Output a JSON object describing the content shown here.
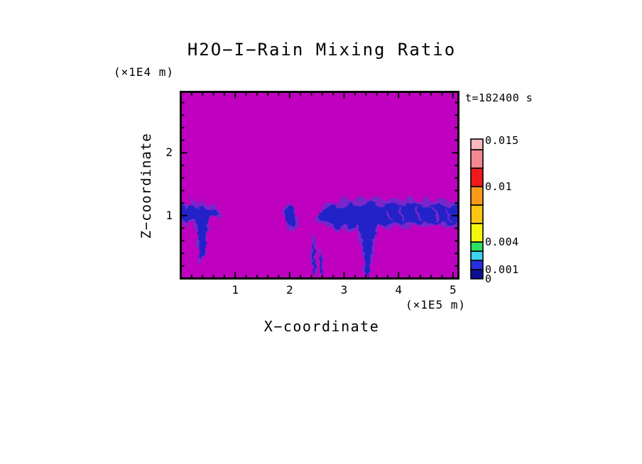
{
  "title": "H2O−I−Rain Mixing Ratio",
  "time_label": "t=182400 s",
  "axes": {
    "x_title": "X−coordinate",
    "x_unit": "(×1E5 m)",
    "y_title": "Z−coordinate",
    "y_unit": "(×1E4 m)"
  },
  "colors": {
    "background": "#ffffff",
    "field_magenta": "#bf00bf",
    "contour_violet": "#7a26cd",
    "contour_blue": "#2424c8",
    "frame_black": "#000000"
  },
  "chart_data": {
    "type": "heatmap",
    "title": "H2O−I−Rain Mixing Ratio",
    "xlabel": "X−coordinate (×1E5 m)",
    "ylabel": "Z−coordinate (×1E4 m)",
    "time_annotation": "t=182400 s",
    "xlim": [
      0,
      5.1
    ],
    "ylim": [
      0,
      2.97
    ],
    "x_major_ticks": [
      1,
      2,
      3,
      4,
      5
    ],
    "y_major_ticks": [
      1,
      2
    ],
    "minor_tick_step": 0.2,
    "grid": false,
    "field_background_color": "#bf00bf",
    "colorbar": {
      "vmax": 0.01515,
      "levels": [
        0,
        0.001,
        0.002,
        0.003,
        0.004,
        0.006,
        0.008,
        0.01,
        0.012,
        0.014,
        0.01515
      ],
      "colors_bottom_to_top": [
        "#0d0d96",
        "#2430e0",
        "#3ed2f0",
        "#2ae062",
        "#f6f60c",
        "#fbc613",
        "#fa9a1b",
        "#f01a1a",
        "#f4888e",
        "#f7b9c0"
      ],
      "tick_labels": [
        {
          "value": 0.015,
          "label": "0.015"
        },
        {
          "value": 0.01,
          "label": "0.01"
        },
        {
          "value": 0.004,
          "label": "0.004"
        },
        {
          "value": 0.001,
          "label": "0.001"
        },
        {
          "value": 0,
          "label": "0"
        }
      ]
    },
    "features": [
      {
        "name": "left-band-fringe",
        "layer": "violet",
        "points": [
          [
            0,
            1.25
          ],
          [
            0.12,
            1.18
          ],
          [
            0.2,
            1.28
          ],
          [
            0.3,
            1.18
          ],
          [
            0.4,
            1.24
          ],
          [
            0.5,
            1.15
          ],
          [
            0.62,
            1.18
          ],
          [
            0.72,
            1.08
          ],
          [
            0.78,
            1.0
          ],
          [
            0.68,
            0.95
          ],
          [
            0.58,
            1.0
          ],
          [
            0.52,
            0.92
          ],
          [
            0.5,
            0.75
          ],
          [
            0.45,
            0.6
          ],
          [
            0.47,
            0.45
          ],
          [
            0.4,
            0.3
          ],
          [
            0.36,
            0.22
          ],
          [
            0.32,
            0.35
          ],
          [
            0.33,
            0.5
          ],
          [
            0.28,
            0.6
          ],
          [
            0.3,
            0.8
          ],
          [
            0.22,
            0.9
          ],
          [
            0.12,
            0.85
          ],
          [
            0,
            0.88
          ]
        ]
      },
      {
        "name": "left-band-core",
        "layer": "blue",
        "points": [
          [
            0,
            1.18
          ],
          [
            0.1,
            1.1
          ],
          [
            0.2,
            1.18
          ],
          [
            0.32,
            1.1
          ],
          [
            0.42,
            1.16
          ],
          [
            0.55,
            1.08
          ],
          [
            0.65,
            1.1
          ],
          [
            0.7,
            1.02
          ],
          [
            0.62,
            0.98
          ],
          [
            0.52,
            1.0
          ],
          [
            0.5,
            0.85
          ],
          [
            0.46,
            0.65
          ],
          [
            0.47,
            0.5
          ],
          [
            0.41,
            0.38
          ],
          [
            0.37,
            0.3
          ],
          [
            0.34,
            0.45
          ],
          [
            0.34,
            0.6
          ],
          [
            0.3,
            0.7
          ],
          [
            0.3,
            0.85
          ],
          [
            0.2,
            0.95
          ],
          [
            0.1,
            0.9
          ],
          [
            0,
            0.95
          ]
        ]
      },
      {
        "name": "mid-blob-fringe",
        "layer": "violet",
        "points": [
          [
            1.88,
            1.02
          ],
          [
            1.92,
            1.15
          ],
          [
            1.98,
            1.22
          ],
          [
            2.06,
            1.18
          ],
          [
            2.1,
            1.08
          ],
          [
            2.16,
            0.95
          ],
          [
            2.12,
            0.82
          ],
          [
            2.05,
            0.75
          ],
          [
            1.98,
            0.8
          ],
          [
            1.92,
            0.9
          ]
        ]
      },
      {
        "name": "mid-blob-core",
        "layer": "blue",
        "points": [
          [
            1.91,
            1.02
          ],
          [
            1.95,
            1.12
          ],
          [
            2.0,
            1.18
          ],
          [
            2.06,
            1.13
          ],
          [
            2.1,
            1.02
          ],
          [
            2.12,
            0.92
          ],
          [
            2.07,
            0.8
          ],
          [
            2.0,
            0.85
          ],
          [
            1.94,
            0.93
          ]
        ]
      },
      {
        "name": "streak-1-fringe",
        "layer": "violet",
        "points": [
          [
            2.42,
            0.75
          ],
          [
            2.47,
            0.62
          ],
          [
            2.49,
            0.45
          ],
          [
            2.5,
            0.25
          ],
          [
            2.49,
            0.08
          ],
          [
            2.45,
            0.02
          ],
          [
            2.42,
            0.1
          ],
          [
            2.41,
            0.3
          ],
          [
            2.39,
            0.5
          ],
          [
            2.4,
            0.65
          ]
        ]
      },
      {
        "name": "streak-1-core",
        "layer": "blue",
        "points": [
          [
            2.44,
            0.62
          ],
          [
            2.465,
            0.45
          ],
          [
            2.475,
            0.28
          ],
          [
            2.465,
            0.1
          ],
          [
            2.45,
            0.04
          ],
          [
            2.43,
            0.12
          ],
          [
            2.425,
            0.3
          ],
          [
            2.42,
            0.5
          ]
        ]
      },
      {
        "name": "streak-2-fringe",
        "layer": "violet",
        "points": [
          [
            2.56,
            0.5
          ],
          [
            2.6,
            0.4
          ],
          [
            2.61,
            0.2
          ],
          [
            2.6,
            0.05
          ],
          [
            2.57,
            0.02
          ],
          [
            2.55,
            0.15
          ],
          [
            2.545,
            0.35
          ]
        ]
      },
      {
        "name": "streak-2-core",
        "layer": "blue",
        "points": [
          [
            2.57,
            0.42
          ],
          [
            2.59,
            0.3
          ],
          [
            2.595,
            0.15
          ],
          [
            2.585,
            0.05
          ],
          [
            2.57,
            0.08
          ],
          [
            2.56,
            0.25
          ]
        ]
      },
      {
        "name": "right-band-fringe",
        "layer": "violet",
        "points": [
          [
            2.52,
            1.0
          ],
          [
            2.6,
            1.12
          ],
          [
            2.7,
            1.25
          ],
          [
            2.85,
            1.18
          ],
          [
            3.0,
            1.3
          ],
          [
            3.15,
            1.22
          ],
          [
            3.3,
            1.32
          ],
          [
            3.45,
            1.24
          ],
          [
            3.6,
            1.3
          ],
          [
            3.75,
            1.22
          ],
          [
            3.9,
            1.3
          ],
          [
            4.05,
            1.24
          ],
          [
            4.2,
            1.3
          ],
          [
            4.35,
            1.22
          ],
          [
            4.5,
            1.28
          ],
          [
            4.65,
            1.2
          ],
          [
            4.8,
            1.28
          ],
          [
            4.95,
            1.22
          ],
          [
            5.1,
            1.26
          ],
          [
            5.1,
            0.82
          ],
          [
            4.9,
            0.78
          ],
          [
            4.7,
            0.85
          ],
          [
            4.5,
            0.78
          ],
          [
            4.3,
            0.85
          ],
          [
            4.1,
            0.78
          ],
          [
            3.95,
            0.85
          ],
          [
            3.8,
            0.78
          ],
          [
            3.65,
            0.85
          ],
          [
            3.55,
            0.6
          ],
          [
            3.5,
            0.3
          ],
          [
            3.47,
            0.05
          ],
          [
            3.42,
            0.0
          ],
          [
            3.38,
            0.05
          ],
          [
            3.36,
            0.3
          ],
          [
            3.3,
            0.6
          ],
          [
            3.22,
            0.8
          ],
          [
            3.1,
            0.72
          ],
          [
            3.0,
            0.8
          ],
          [
            2.9,
            0.72
          ],
          [
            2.8,
            0.82
          ],
          [
            2.7,
            0.78
          ],
          [
            2.6,
            0.88
          ],
          [
            2.52,
            0.9
          ]
        ]
      },
      {
        "name": "right-band-core",
        "layer": "blue",
        "points": [
          [
            2.55,
            1.0
          ],
          [
            2.65,
            1.1
          ],
          [
            2.78,
            1.18
          ],
          [
            2.95,
            1.12
          ],
          [
            3.1,
            1.2
          ],
          [
            3.3,
            1.14
          ],
          [
            3.5,
            1.22
          ],
          [
            3.7,
            1.14
          ],
          [
            3.9,
            1.22
          ],
          [
            4.1,
            1.15
          ],
          [
            4.3,
            1.2
          ],
          [
            4.5,
            1.13
          ],
          [
            4.7,
            1.2
          ],
          [
            4.9,
            1.13
          ],
          [
            5.1,
            1.18
          ],
          [
            5.1,
            0.9
          ],
          [
            4.95,
            0.85
          ],
          [
            4.8,
            0.92
          ],
          [
            4.65,
            0.85
          ],
          [
            4.5,
            0.92
          ],
          [
            4.35,
            0.84
          ],
          [
            4.2,
            0.92
          ],
          [
            4.05,
            0.84
          ],
          [
            3.9,
            0.9
          ],
          [
            3.75,
            0.83
          ],
          [
            3.62,
            0.88
          ],
          [
            3.54,
            0.65
          ],
          [
            3.49,
            0.35
          ],
          [
            3.46,
            0.08
          ],
          [
            3.43,
            0.03
          ],
          [
            3.4,
            0.1
          ],
          [
            3.37,
            0.35
          ],
          [
            3.32,
            0.65
          ],
          [
            3.25,
            0.85
          ],
          [
            3.12,
            0.78
          ],
          [
            3.0,
            0.86
          ],
          [
            2.88,
            0.78
          ],
          [
            2.75,
            0.88
          ],
          [
            2.62,
            0.92
          ],
          [
            2.55,
            0.95
          ]
        ]
      },
      {
        "name": "band-streak-a",
        "layer": "violet",
        "points": [
          [
            3.75,
            1.1
          ],
          [
            3.83,
            0.92
          ],
          [
            3.86,
            0.92
          ],
          [
            3.78,
            1.1
          ]
        ]
      },
      {
        "name": "band-streak-b",
        "layer": "violet",
        "points": [
          [
            4.0,
            1.15
          ],
          [
            4.08,
            0.95
          ],
          [
            4.12,
            0.95
          ],
          [
            4.04,
            1.15
          ]
        ]
      },
      {
        "name": "band-streak-c",
        "layer": "violet",
        "points": [
          [
            4.3,
            1.12
          ],
          [
            4.38,
            0.92
          ],
          [
            4.42,
            0.92
          ],
          [
            4.34,
            1.12
          ]
        ]
      },
      {
        "name": "band-streak-d",
        "layer": "violet",
        "points": [
          [
            4.6,
            1.15
          ],
          [
            4.68,
            0.93
          ],
          [
            4.72,
            0.93
          ],
          [
            4.64,
            1.15
          ]
        ]
      },
      {
        "name": "band-streak-e",
        "layer": "violet",
        "points": [
          [
            4.85,
            1.1
          ],
          [
            4.93,
            0.9
          ],
          [
            4.97,
            0.9
          ],
          [
            4.89,
            1.1
          ]
        ]
      }
    ]
  }
}
